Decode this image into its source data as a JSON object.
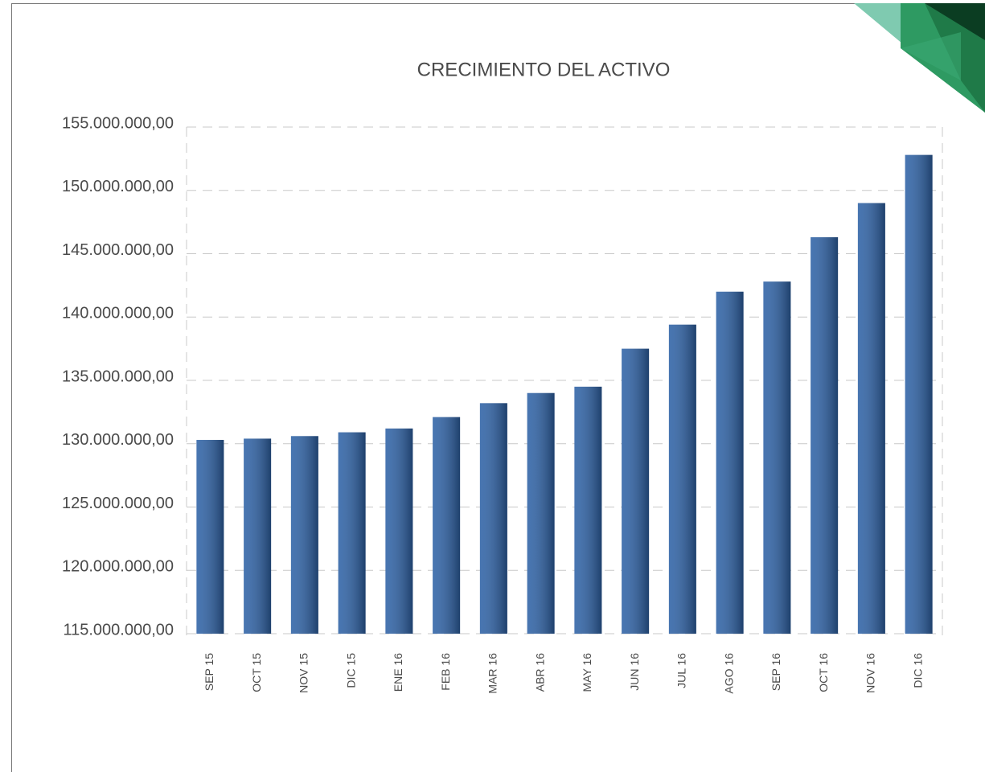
{
  "chart_data": {
    "type": "bar",
    "title": "CRECIMIENTO DEL ACTIVO",
    "categories": [
      "SEP 15",
      "OCT 15",
      "NOV 15",
      "DIC 15",
      "ENE 16",
      "FEB 16",
      "MAR 16",
      "ABR 16",
      "MAY 16",
      "JUN 16",
      "JUL 16",
      "AGO 16",
      "SEP 16",
      "OCT 16",
      "NOV 16",
      "DIC 16"
    ],
    "values": [
      130300000,
      130400000,
      130600000,
      130900000,
      131200000,
      132100000,
      133200000,
      134000000,
      134500000,
      137500000,
      139400000,
      142000000,
      142800000,
      146300000,
      149000000,
      152800000
    ],
    "color": "#2e62a6",
    "ylim": [
      115000000,
      155000000
    ],
    "yticks": [
      {
        "value": 115000000,
        "label": "115.000.000,00"
      },
      {
        "value": 120000000,
        "label": "120.000.000,00"
      },
      {
        "value": 125000000,
        "label": "125.000.000,00"
      },
      {
        "value": 130000000,
        "label": "130.000.000,00"
      },
      {
        "value": 135000000,
        "label": "135.000.000,00"
      },
      {
        "value": 140000000,
        "label": "140.000.000,00"
      },
      {
        "value": 145000000,
        "label": "145.000.000,00"
      },
      {
        "value": 150000000,
        "label": "150.000.000,00"
      },
      {
        "value": 155000000,
        "label": "155.000.000,00"
      }
    ],
    "grid": true
  }
}
